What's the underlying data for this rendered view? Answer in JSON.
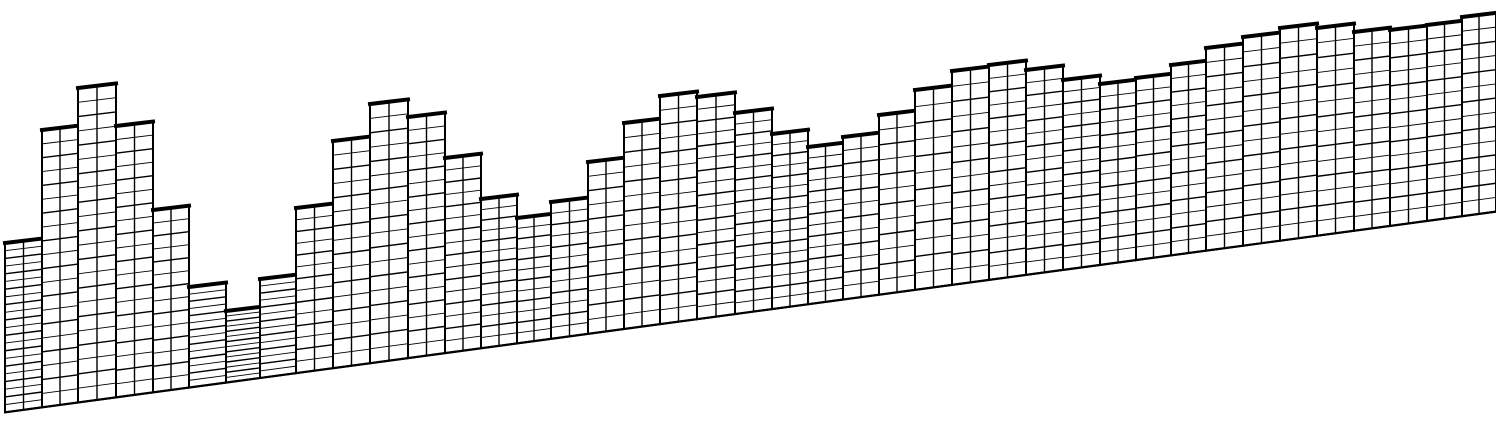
{
  "diagram": {
    "type": "stepped-panel-wall-elevation",
    "line_color": "#000000",
    "background": "#ffffff",
    "columns": [
      {
        "index": 1,
        "panel_rows": 11,
        "has_mid_divider": true
      },
      {
        "index": 2,
        "panel_rows": 10,
        "has_mid_divider": true
      },
      {
        "index": 3,
        "panel_rows": 11,
        "has_mid_divider": true
      },
      {
        "index": 4,
        "panel_rows": 10,
        "has_mid_divider": true
      },
      {
        "index": 5,
        "panel_rows": 7,
        "has_mid_divider": true
      },
      {
        "index": 6,
        "panel_rows": 7,
        "has_mid_divider": false
      },
      {
        "index": 7,
        "panel_rows": 7,
        "has_mid_divider": false
      },
      {
        "index": 8,
        "panel_rows": 7,
        "has_mid_divider": false
      },
      {
        "index": 9,
        "panel_rows": 7,
        "has_mid_divider": true
      },
      {
        "index": 10,
        "panel_rows": 8,
        "has_mid_divider": true
      },
      {
        "index": 11,
        "panel_rows": 9,
        "has_mid_divider": true
      },
      {
        "index": 12,
        "panel_rows": 9,
        "has_mid_divider": true
      },
      {
        "index": 13,
        "panel_rows": 8,
        "has_mid_divider": true
      },
      {
        "index": 14,
        "panel_rows": 7,
        "has_mid_divider": true
      },
      {
        "index": 15,
        "panel_rows": 6,
        "has_mid_divider": true
      },
      {
        "index": 16,
        "panel_rows": 6,
        "has_mid_divider": true
      },
      {
        "index": 17,
        "panel_rows": 6,
        "has_mid_divider": true
      },
      {
        "index": 18,
        "panel_rows": 7,
        "has_mid_divider": true
      },
      {
        "index": 19,
        "panel_rows": 8,
        "has_mid_divider": true
      },
      {
        "index": 20,
        "panel_rows": 9,
        "has_mid_divider": true
      },
      {
        "index": 21,
        "panel_rows": 9,
        "has_mid_divider": true
      },
      {
        "index": 22,
        "panel_rows": 8,
        "has_mid_divider": true
      },
      {
        "index": 23,
        "panel_rows": 7,
        "has_mid_divider": true
      },
      {
        "index": 24,
        "panel_rows": 6,
        "has_mid_divider": true
      },
      {
        "index": 25,
        "panel_rows": 6,
        "has_mid_divider": true
      },
      {
        "index": 26,
        "panel_rows": 6,
        "has_mid_divider": true
      },
      {
        "index": 27,
        "panel_rows": 7,
        "has_mid_divider": true
      },
      {
        "index": 28,
        "panel_rows": 8,
        "has_mid_divider": true
      },
      {
        "index": 29,
        "panel_rows": 8,
        "has_mid_divider": true
      },
      {
        "index": 30,
        "panel_rows": 8,
        "has_mid_divider": true
      },
      {
        "index": 31,
        "panel_rows": 7,
        "has_mid_divider": true
      },
      {
        "index": 32,
        "panel_rows": 7,
        "has_mid_divider": true
      },
      {
        "index": 33,
        "panel_rows": 7,
        "has_mid_divider": true
      },
      {
        "index": 34,
        "panel_rows": 7,
        "has_mid_divider": true
      },
      {
        "index": 35,
        "panel_rows": 7,
        "has_mid_divider": true
      },
      {
        "index": 36,
        "panel_rows": 7,
        "has_mid_divider": true
      },
      {
        "index": 37,
        "panel_rows": 7,
        "has_mid_divider": true
      },
      {
        "index": 38,
        "panel_rows": 7,
        "has_mid_divider": true
      },
      {
        "index": 39,
        "panel_rows": 7,
        "has_mid_divider": true
      },
      {
        "index": 40,
        "panel_rows": 7,
        "has_mid_divider": true
      },
      {
        "index": 41,
        "panel_rows": 7,
        "has_mid_divider": true
      }
    ]
  }
}
